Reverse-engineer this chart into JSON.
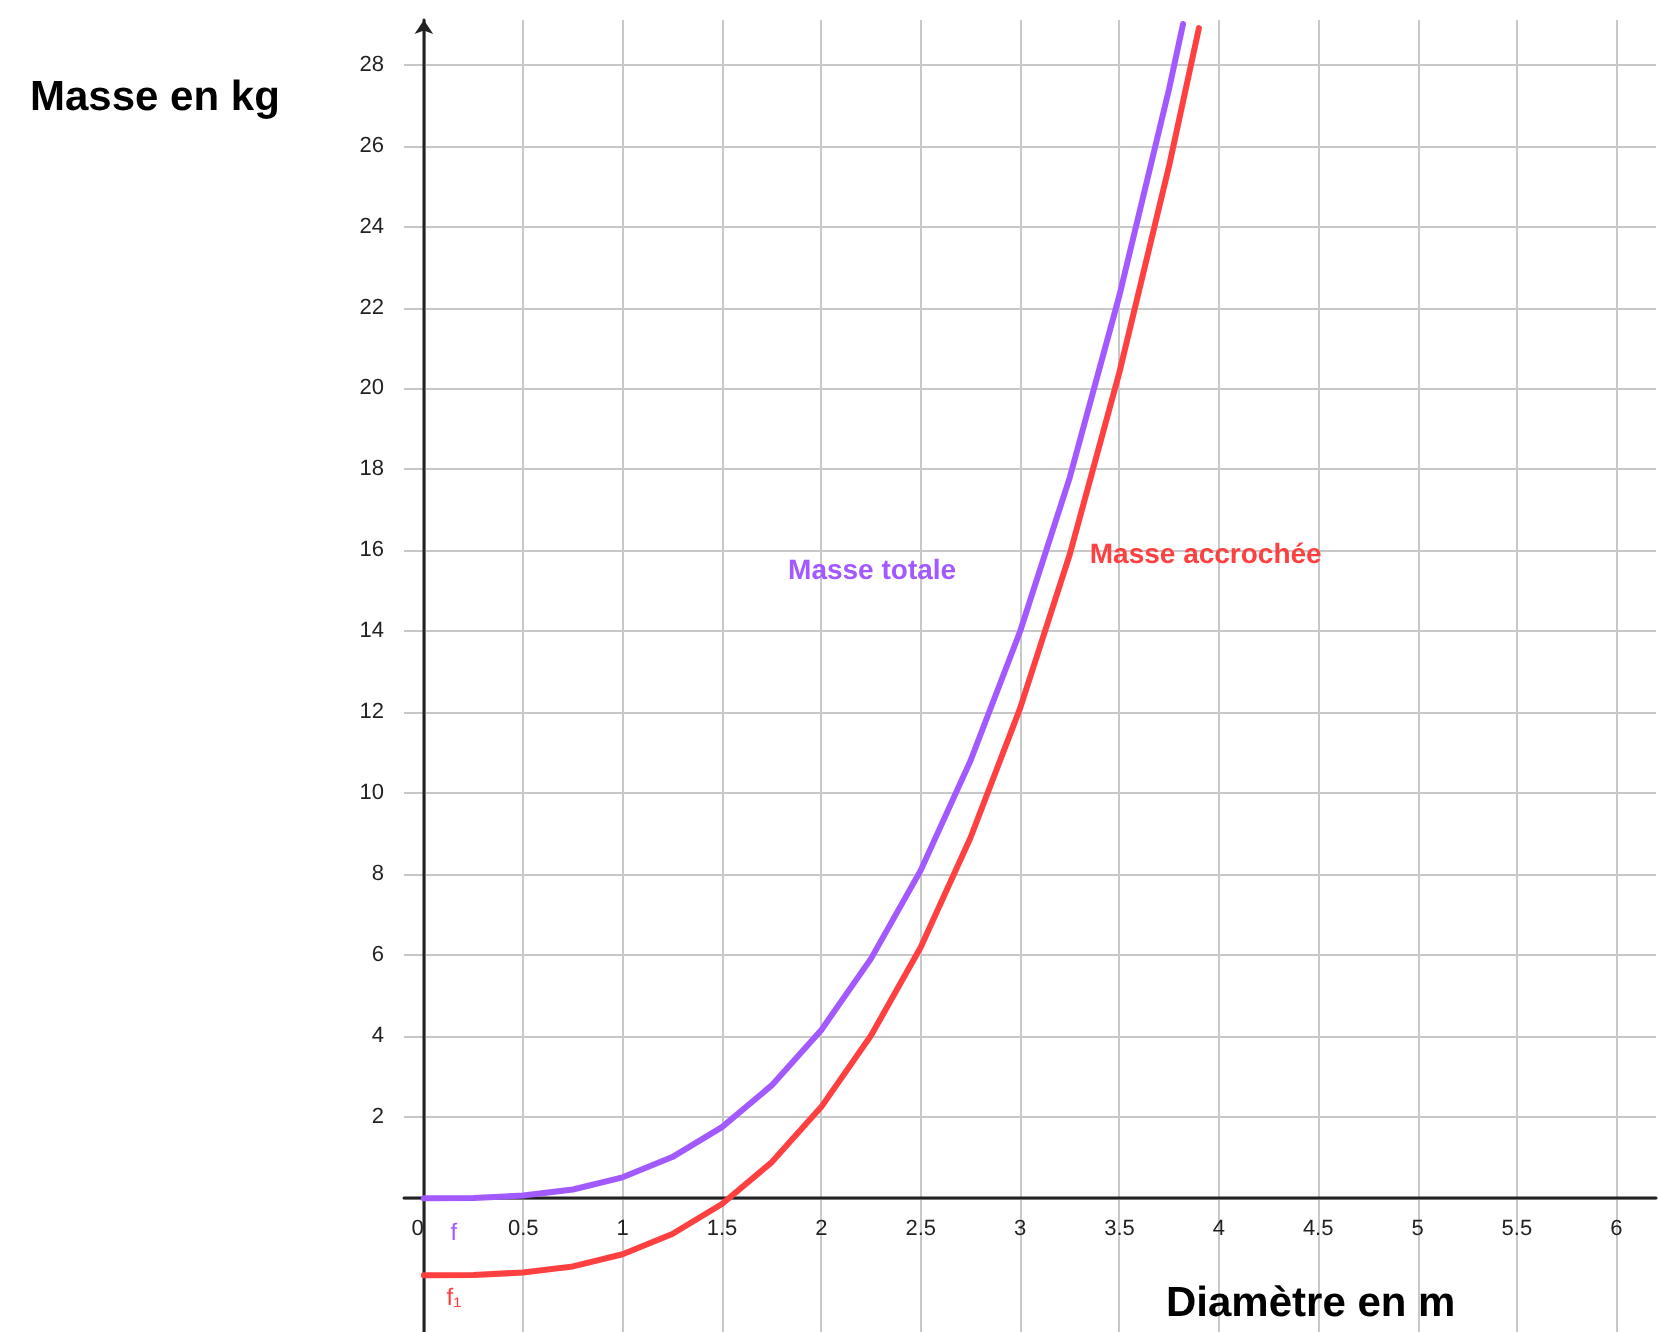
{
  "chart_data": {
    "type": "line",
    "xlabel": "Diamètre en m",
    "ylabel": "Masse en kg",
    "xlim": [
      -0.1,
      6.2
    ],
    "ylim": [
      -3.3,
      29.1
    ],
    "xticks": [
      0,
      0.5,
      1,
      1.5,
      2,
      2.5,
      3,
      3.5,
      4,
      4.5,
      5,
      5.5,
      6
    ],
    "yticks": [
      {
        "value": 0,
        "label": null
      },
      2,
      4,
      6,
      8,
      10,
      12,
      14,
      16,
      18,
      20,
      22,
      24,
      26,
      28
    ],
    "grid": true,
    "legend": false,
    "marker": "none",
    "line_style": "solid",
    "series": [
      {
        "name": "Masse totale",
        "color": "#a259ff",
        "x": [
          0,
          0.25,
          0.5,
          0.75,
          1,
          1.25,
          1.5,
          1.75,
          2,
          2.25,
          2.5,
          2.75,
          3,
          3.25,
          3.5,
          3.75,
          3.82
        ],
        "values": [
          0,
          0.01,
          0.07,
          0.22,
          0.52,
          1.02,
          1.76,
          2.79,
          4.16,
          5.92,
          8.1,
          10.8,
          14.0,
          17.8,
          22.3,
          27.4,
          29.0
        ]
      },
      {
        "name": "Masse accrochée",
        "color": "#ff4040",
        "x": [
          0,
          0.25,
          0.5,
          0.75,
          1,
          1.25,
          1.5,
          1.75,
          2,
          2.25,
          2.5,
          2.75,
          3,
          3.25,
          3.5,
          3.75,
          3.9
        ],
        "values": [
          -1.9,
          -1.89,
          -1.83,
          -1.68,
          -1.38,
          -0.88,
          -0.14,
          0.89,
          2.26,
          4.02,
          6.2,
          8.9,
          12.1,
          15.9,
          20.4,
          25.5,
          28.9
        ]
      }
    ],
    "annotations": [
      "f",
      "f₁"
    ]
  }
}
